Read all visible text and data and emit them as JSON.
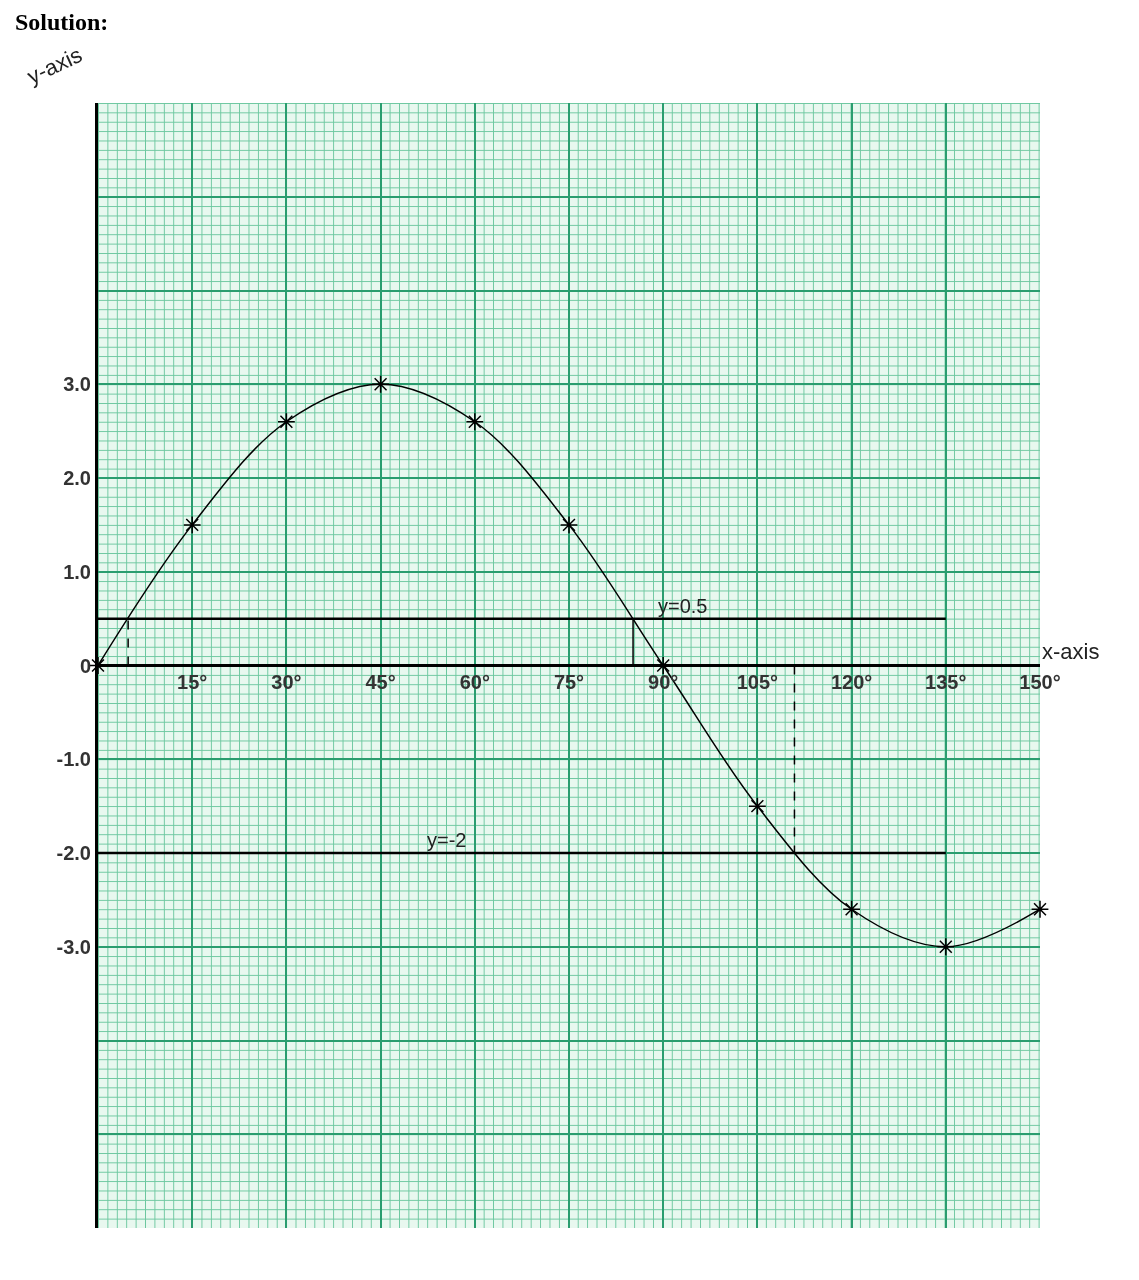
{
  "chart_data": {
    "type": "line",
    "title": "Solution:",
    "xlabel": "x-axis",
    "ylabel": "y-axis",
    "x": [
      0,
      15,
      30,
      45,
      60,
      75,
      90,
      105,
      120,
      135,
      150
    ],
    "series": [
      {
        "color": "#000000",
        "values": [
          0,
          1.5,
          2.6,
          3,
          2.6,
          1.5,
          0,
          -1.5,
          -2.6,
          -3,
          -2.6
        ],
        "marker": "cross",
        "line_style": "solid"
      },
      {
        "type": "line",
        "x": [
          4.8,
          4.8
        ],
        "values": [
          0,
          0.5
        ],
        "color": "#000000",
        "marker": "none",
        "line_style": "dashed"
      },
      {
        "type": "line",
        "x": [
          85.2,
          85.2
        ],
        "values": [
          0,
          0.5
        ],
        "color": "#000000",
        "marker": "none",
        "line_style": "solid"
      },
      {
        "type": "line",
        "x": [
          110.9,
          110.9
        ],
        "values": [
          0,
          -2
        ],
        "color": "#000000",
        "marker": "none",
        "line_style": "dashed"
      }
    ],
    "ref_lines": [
      {
        "axis": "y",
        "value": 0.5,
        "label": "y=0.5",
        "color": "#000000"
      },
      {
        "axis": "y",
        "value": -2,
        "label": "y=-2",
        "color": "#000000"
      }
    ],
    "xlim": [
      0,
      150
    ],
    "xticks": [
      {
        "value": 15,
        "label": "15°"
      },
      {
        "value": 30,
        "label": "30°"
      },
      {
        "value": 45,
        "label": "45°"
      },
      {
        "value": 60,
        "label": "60°"
      },
      {
        "value": 75,
        "label": "75°"
      },
      {
        "value": 90,
        "label": "90°"
      },
      {
        "value": 105,
        "label": "105°"
      },
      {
        "value": 120,
        "label": "120°"
      },
      {
        "value": 135,
        "label": "135°"
      },
      {
        "value": 150,
        "label": "150°"
      }
    ],
    "ylim": [
      -6,
      6
    ],
    "yticks": [
      {
        "value": -6,
        "label": null
      },
      {
        "value": -5,
        "label": null
      },
      {
        "value": -4,
        "label": null
      },
      {
        "value": -3,
        "label": "-3.0"
      },
      {
        "value": -2,
        "label": "-2.0"
      },
      {
        "value": -1,
        "label": "-1.0"
      },
      0,
      {
        "value": 1,
        "label": "1.0"
      },
      {
        "value": 2,
        "label": "2.0"
      },
      {
        "value": 3,
        "label": "3.0"
      },
      {
        "value": 4,
        "label": null
      },
      {
        "value": 5,
        "label": null
      },
      {
        "value": 6,
        "label": null
      }
    ],
    "grid": true
  }
}
